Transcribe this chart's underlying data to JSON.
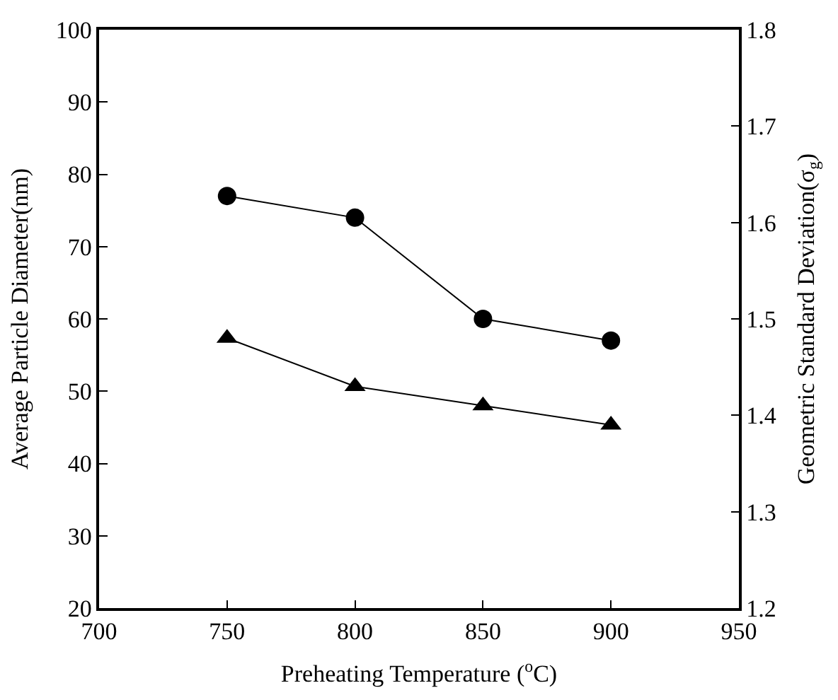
{
  "chart_data": {
    "type": "line",
    "x": [
      750,
      800,
      850,
      900
    ],
    "xlabel": "Preheating Temperature ($^{o}$C)",
    "ylabel": "Average Particle Diameter(nm)",
    "y2label": "Geometric Standard Deviation(σ$_{g}$)",
    "series": [
      {
        "color": "#000000",
        "marker": "circle",
        "values": [
          77,
          74,
          60,
          57
        ]
      },
      {
        "color": "#000000",
        "marker": "triangle",
        "axis": "y2",
        "values": [
          1.48,
          1.43,
          1.41,
          1.39
        ]
      }
    ],
    "xlim": [
      700,
      950
    ],
    "xticks": [
      700,
      750,
      800,
      850,
      900,
      950
    ],
    "ylim": [
      20,
      100
    ],
    "yticks": [
      20,
      30,
      40,
      50,
      60,
      70,
      80,
      90,
      100
    ],
    "y2lim": [
      1.2,
      1.8
    ],
    "y2ticks": [
      1.2,
      1.3,
      1.4,
      1.5,
      1.6,
      1.7,
      1.8
    ],
    "line_style": "solid"
  }
}
